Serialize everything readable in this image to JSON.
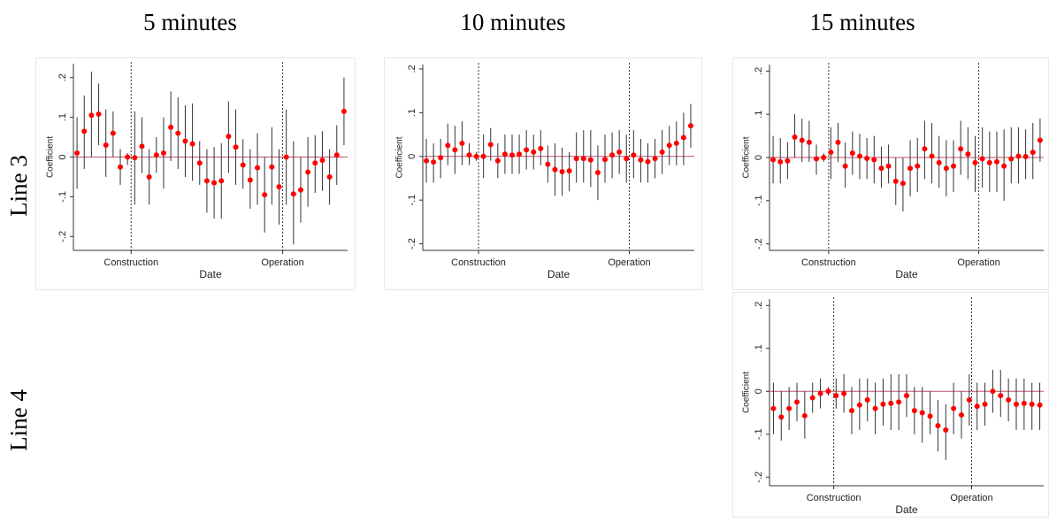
{
  "column_titles": [
    "5 minutes",
    "10 minutes",
    "15 minutes"
  ],
  "row_labels": [
    "Line 3",
    "Line 4"
  ],
  "chart_data": [
    {
      "type": "errorbar",
      "x_label": "Date",
      "y_label": "Coefficient",
      "point_color": "#ff0000",
      "ci_color": "#333333",
      "zero_line_color": "#c0506a",
      "x": [
        0,
        1,
        2,
        3,
        4,
        5,
        6,
        7,
        8,
        9,
        10,
        11,
        12,
        13,
        14,
        15,
        16,
        17,
        18,
        19,
        20,
        21,
        22,
        23,
        24,
        25,
        26,
        27,
        28,
        29,
        30,
        31,
        32,
        33,
        34,
        35,
        36,
        37
      ],
      "values": [
        0.01,
        0.065,
        0.105,
        0.108,
        0.03,
        0.06,
        -0.025,
        0.0,
        -0.002,
        0.027,
        -0.05,
        0.005,
        0.01,
        0.075,
        0.06,
        0.04,
        0.033,
        -0.015,
        -0.06,
        -0.065,
        -0.06,
        0.052,
        0.025,
        -0.02,
        -0.058,
        -0.027,
        -0.095,
        -0.025,
        -0.075,
        0.0,
        -0.093,
        -0.083,
        -0.038,
        -0.015,
        -0.008,
        -0.05,
        0.005,
        0.115
      ],
      "lower": [
        -0.08,
        -0.03,
        0.0,
        0.03,
        -0.05,
        0.0,
        -0.07,
        -0.02,
        -0.12,
        -0.04,
        -0.12,
        -0.04,
        -0.08,
        -0.01,
        -0.03,
        -0.05,
        -0.06,
        -0.07,
        -0.14,
        -0.155,
        -0.155,
        -0.04,
        -0.07,
        -0.08,
        -0.13,
        -0.12,
        -0.19,
        -0.12,
        -0.17,
        -0.12,
        -0.22,
        -0.165,
        -0.125,
        -0.09,
        -0.085,
        -0.12,
        -0.07,
        0.03
      ],
      "upper": [
        0.1,
        0.155,
        0.215,
        0.185,
        0.12,
        0.115,
        0.02,
        0.01,
        0.115,
        0.1,
        0.02,
        0.05,
        0.1,
        0.165,
        0.15,
        0.13,
        0.135,
        0.04,
        0.02,
        0.025,
        0.035,
        0.14,
        0.12,
        0.045,
        0.02,
        0.06,
        0.0,
        0.075,
        0.02,
        0.12,
        0.04,
        0.0,
        0.05,
        0.055,
        0.065,
        0.02,
        0.08,
        0.2
      ],
      "xlim": [
        -0.5,
        37.5
      ],
      "ylim": [
        -0.235,
        0.235
      ],
      "xticks": [
        {
          "value": 7.5,
          "label": "Construction"
        },
        {
          "value": 28.5,
          "label": "Operation"
        }
      ],
      "yticks": [
        {
          "value": -0.2,
          "label": "-.2"
        },
        {
          "value": -0.1,
          "label": "-.1"
        },
        0,
        {
          "value": 0.1,
          "label": ".1"
        },
        {
          "value": 0.2,
          "label": ".2"
        }
      ]
    },
    {
      "type": "errorbar",
      "x_label": "Date",
      "y_label": "Coefficient",
      "point_color": "#ff0000",
      "ci_color": "#333333",
      "zero_line_color": "#c0506a",
      "x": [
        0,
        1,
        2,
        3,
        4,
        5,
        6,
        7,
        8,
        9,
        10,
        11,
        12,
        13,
        14,
        15,
        16,
        17,
        18,
        19,
        20,
        21,
        22,
        23,
        24,
        25,
        26,
        27,
        28,
        29,
        30,
        31,
        32,
        33,
        34,
        35,
        36,
        37
      ],
      "values": [
        -0.01,
        -0.013,
        -0.003,
        0.025,
        0.015,
        0.03,
        0.003,
        0.0,
        0.0,
        0.027,
        -0.01,
        0.005,
        0.003,
        0.005,
        0.015,
        0.01,
        0.018,
        -0.018,
        -0.03,
        -0.035,
        -0.033,
        -0.005,
        -0.005,
        -0.008,
        -0.037,
        -0.007,
        0.003,
        0.01,
        -0.005,
        0.003,
        -0.008,
        -0.012,
        -0.005,
        0.01,
        0.025,
        0.03,
        0.043,
        0.07
      ],
      "lower": [
        -0.06,
        -0.06,
        -0.05,
        -0.02,
        -0.04,
        -0.02,
        -0.02,
        -0.01,
        -0.05,
        -0.01,
        -0.05,
        -0.04,
        -0.04,
        -0.04,
        -0.03,
        -0.03,
        -0.02,
        -0.06,
        -0.09,
        -0.09,
        -0.08,
        -0.06,
        -0.06,
        -0.07,
        -0.1,
        -0.06,
        -0.05,
        -0.04,
        -0.06,
        -0.05,
        -0.06,
        -0.06,
        -0.05,
        -0.04,
        -0.02,
        -0.02,
        -0.02,
        0.02
      ],
      "upper": [
        0.04,
        0.03,
        0.04,
        0.075,
        0.07,
        0.08,
        0.03,
        0.01,
        0.05,
        0.065,
        0.03,
        0.05,
        0.05,
        0.05,
        0.06,
        0.05,
        0.06,
        0.025,
        0.03,
        0.02,
        0.01,
        0.055,
        0.06,
        0.06,
        0.025,
        0.05,
        0.055,
        0.06,
        0.05,
        0.06,
        0.04,
        0.03,
        0.04,
        0.06,
        0.07,
        0.08,
        0.1,
        0.12
      ],
      "xlim": [
        -0.5,
        37.5
      ],
      "ylim": [
        -0.215,
        0.21
      ],
      "xticks": [
        {
          "value": 7.3,
          "label": "Construction"
        },
        {
          "value": 28.4,
          "label": "Operation"
        }
      ],
      "yticks": [
        {
          "value": -0.2,
          "label": "-.2"
        },
        {
          "value": -0.1,
          "label": "-.1"
        },
        0,
        {
          "value": 0.1,
          "label": ".1"
        },
        {
          "value": 0.2,
          "label": ".2"
        }
      ]
    },
    {
      "type": "errorbar",
      "x_label": "Date",
      "y_label": "Coefficient",
      "point_color": "#ff0000",
      "ci_color": "#333333",
      "zero_line_color": "#c0506a",
      "x": [
        0,
        1,
        2,
        3,
        4,
        5,
        6,
        7,
        8,
        9,
        10,
        11,
        12,
        13,
        14,
        15,
        16,
        17,
        18,
        19,
        20,
        21,
        22,
        23,
        24,
        25,
        26,
        27,
        28,
        29,
        30,
        31,
        32,
        33,
        34,
        35,
        36,
        37
      ],
      "values": [
        -0.005,
        -0.01,
        -0.008,
        0.047,
        0.04,
        0.035,
        -0.003,
        0.0,
        0.012,
        0.035,
        -0.02,
        0.01,
        0.003,
        -0.002,
        -0.005,
        -0.025,
        -0.02,
        -0.055,
        -0.06,
        -0.025,
        -0.02,
        0.02,
        0.003,
        -0.012,
        -0.025,
        -0.02,
        0.02,
        0.008,
        -0.012,
        -0.003,
        -0.012,
        -0.01,
        -0.02,
        -0.003,
        0.003,
        0.002,
        0.012,
        0.04
      ],
      "lower": [
        -0.06,
        -0.06,
        -0.05,
        0.0,
        -0.01,
        -0.01,
        -0.04,
        -0.01,
        -0.05,
        -0.01,
        -0.07,
        -0.04,
        -0.05,
        -0.05,
        -0.06,
        -0.07,
        -0.06,
        -0.11,
        -0.125,
        -0.09,
        -0.08,
        -0.05,
        -0.06,
        -0.07,
        -0.09,
        -0.08,
        -0.04,
        -0.05,
        -0.08,
        -0.07,
        -0.08,
        -0.08,
        -0.1,
        -0.06,
        -0.06,
        -0.05,
        -0.05,
        -0.01
      ],
      "upper": [
        0.05,
        0.045,
        0.035,
        0.1,
        0.09,
        0.085,
        0.03,
        0.01,
        0.07,
        0.08,
        0.035,
        0.06,
        0.055,
        0.045,
        0.05,
        0.025,
        0.03,
        0.0,
        0.0,
        0.04,
        0.045,
        0.085,
        0.08,
        0.05,
        0.04,
        0.04,
        0.085,
        0.07,
        0.05,
        0.07,
        0.06,
        0.06,
        0.065,
        0.07,
        0.07,
        0.065,
        0.08,
        0.09
      ],
      "xlim": [
        -0.5,
        37.5
      ],
      "ylim": [
        -0.215,
        0.215
      ],
      "xticks": [
        {
          "value": 7.7,
          "label": "Construction"
        },
        {
          "value": 28.5,
          "label": "Operation"
        }
      ],
      "yticks": [
        {
          "value": -0.2,
          "label": "-.2"
        },
        {
          "value": -0.1,
          "label": "-.1"
        },
        0,
        {
          "value": 0.1,
          "label": ".1"
        },
        {
          "value": 0.2,
          "label": ".2"
        }
      ]
    },
    {
      "type": "errorbar",
      "x_label": "Date",
      "y_label": "Coefficient",
      "point_color": "#ff0000",
      "ci_color": "#333333",
      "zero_line_color": "#c0506a",
      "x": [
        0,
        1,
        2,
        3,
        4,
        5,
        6,
        7,
        8,
        9,
        10,
        11,
        12,
        13,
        14,
        15,
        16,
        17,
        18,
        19,
        20,
        21,
        22,
        23,
        24,
        25,
        26,
        27,
        28,
        29,
        30,
        31,
        32,
        33,
        34
      ],
      "values": [
        -0.04,
        -0.06,
        -0.04,
        -0.025,
        -0.057,
        -0.015,
        -0.005,
        0.0,
        -0.01,
        -0.005,
        -0.045,
        -0.032,
        -0.02,
        -0.04,
        -0.03,
        -0.028,
        -0.025,
        -0.01,
        -0.045,
        -0.05,
        -0.058,
        -0.08,
        -0.09,
        -0.04,
        -0.055,
        -0.02,
        -0.035,
        -0.03,
        0.0,
        -0.01,
        -0.02,
        -0.03,
        -0.028,
        -0.03,
        -0.032
      ],
      "lower": [
        -0.1,
        -0.115,
        -0.09,
        -0.07,
        -0.11,
        -0.05,
        -0.04,
        -0.01,
        -0.04,
        -0.05,
        -0.1,
        -0.09,
        -0.07,
        -0.1,
        -0.08,
        -0.09,
        -0.09,
        -0.06,
        -0.1,
        -0.12,
        -0.1,
        -0.14,
        -0.16,
        -0.1,
        -0.11,
        -0.08,
        -0.09,
        -0.08,
        -0.05,
        -0.06,
        -0.07,
        -0.09,
        -0.09,
        -0.09,
        -0.09
      ],
      "upper": [
        0.02,
        0.0,
        0.01,
        0.02,
        0.0,
        0.02,
        0.03,
        0.01,
        0.03,
        0.04,
        0.01,
        0.03,
        0.03,
        0.02,
        0.03,
        0.04,
        0.04,
        0.04,
        0.01,
        0.01,
        0.0,
        -0.02,
        -0.03,
        0.02,
        0.0,
        0.04,
        0.02,
        0.02,
        0.05,
        0.05,
        0.03,
        0.03,
        0.03,
        0.02,
        0.02
      ],
      "xlim": [
        -0.5,
        34.5
      ],
      "ylim": [
        -0.22,
        0.215
      ],
      "xticks": [
        {
          "value": 7.7,
          "label": "Construction"
        },
        {
          "value": 25.3,
          "label": "Operation"
        }
      ],
      "yticks": [
        {
          "value": -0.2,
          "label": "-.2"
        },
        {
          "value": -0.1,
          "label": "-.1"
        },
        0,
        {
          "value": 0.1,
          "label": ".1"
        },
        {
          "value": 0.2,
          "label": ".2"
        }
      ]
    }
  ]
}
